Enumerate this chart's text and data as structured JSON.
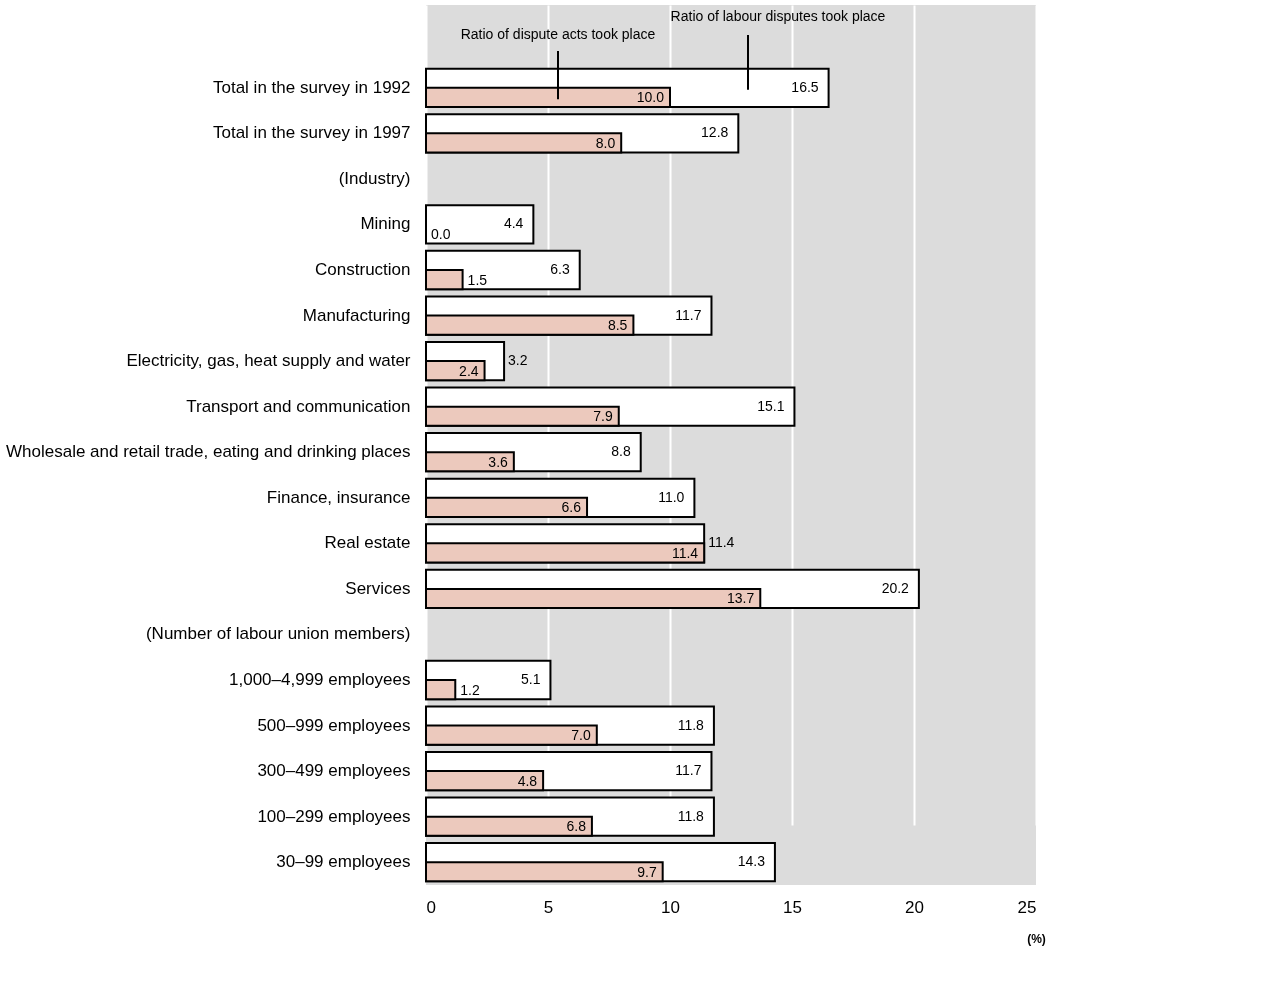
{
  "chart_data": {
    "type": "bar",
    "orientation": "horizontal",
    "xlabel": "(%)",
    "categories": [
      "Total in the survey in 1992",
      "Total in the survey in 1997",
      "(Industry)",
      "Mining",
      "Construction",
      "Manufacturing",
      "Electricity, gas, heat supply and water",
      "Transport and communication",
      "Wholesale and retail trade, eating and drinking places",
      "Finance, insurance",
      "Real estate",
      "Services",
      "(Number of labour union members)",
      "1,000–4,999 employees",
      "500–999 employees",
      "300–499 employees",
      "100–299 employees",
      "30–99 employees"
    ],
    "series": [
      {
        "name": "Ratio of labour disputes took place",
        "color": "#ffffff",
        "values": [
          16.5,
          12.8,
          null,
          4.4,
          6.3,
          11.7,
          3.2,
          15.1,
          8.8,
          11.0,
          11.4,
          20.2,
          null,
          5.1,
          11.8,
          11.7,
          11.8,
          14.3
        ],
        "value_labels": [
          "16.5",
          "12.8",
          null,
          "4.4",
          "6.3",
          "11.7",
          "3.2",
          "15.1",
          "8.8",
          "11.0",
          "11.4",
          "20.2",
          null,
          "5.1",
          "11.8",
          "11.7",
          "11.8",
          "14.3"
        ]
      },
      {
        "name": "Ratio of dispute acts took place",
        "color": "#ecc9bd",
        "values": [
          10.0,
          8.0,
          null,
          0.0,
          1.5,
          8.5,
          2.4,
          7.9,
          3.6,
          6.6,
          11.4,
          13.7,
          null,
          1.2,
          7.0,
          4.8,
          6.8,
          9.7
        ],
        "value_labels": [
          "10.0",
          "8.0",
          null,
          "0.0",
          "1.5",
          "8.5",
          "2.4",
          "7.9",
          "3.6",
          "6.6",
          "11.4",
          "13.7",
          null,
          "1.2",
          "7.0",
          "4.8",
          "6.8",
          "9.7"
        ]
      }
    ],
    "xlim": [
      0,
      25
    ],
    "xticks": [
      0,
      5,
      10,
      15,
      20,
      25
    ],
    "grid": "x"
  }
}
